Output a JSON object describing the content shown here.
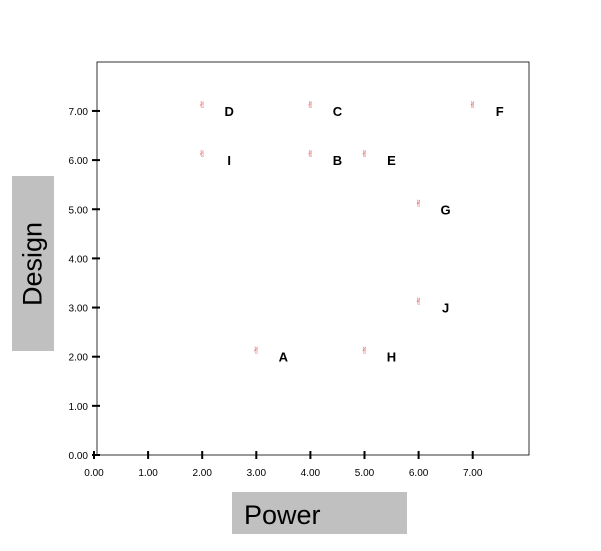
{
  "chart_data": {
    "type": "scatter",
    "title": "",
    "xlabel": "Power",
    "ylabel": "Design",
    "xlim": [
      0,
      8
    ],
    "ylim": [
      0,
      8
    ],
    "grid": false,
    "legend": "none",
    "marker_color": "#e23a3a",
    "marker_glyph": "✌",
    "x_ticks": [
      "0.00",
      "1.00",
      "2.00",
      "3.00",
      "4.00",
      "5.00",
      "6.00",
      "7.00"
    ],
    "y_ticks": [
      "0.00",
      "1.00",
      "2.00",
      "3.00",
      "4.00",
      "5.00",
      "6.00",
      "7.00"
    ],
    "points": [
      {
        "label": "A",
        "x": 3,
        "y": 2
      },
      {
        "label": "B",
        "x": 4,
        "y": 6
      },
      {
        "label": "C",
        "x": 4,
        "y": 7
      },
      {
        "label": "D",
        "x": 2,
        "y": 7
      },
      {
        "label": "E",
        "x": 5,
        "y": 6
      },
      {
        "label": "F",
        "x": 7,
        "y": 7
      },
      {
        "label": "G",
        "x": 6,
        "y": 5
      },
      {
        "label": "H",
        "x": 5,
        "y": 2
      },
      {
        "label": "I",
        "x": 2,
        "y": 6
      },
      {
        "label": "J",
        "x": 6,
        "y": 3
      }
    ]
  }
}
